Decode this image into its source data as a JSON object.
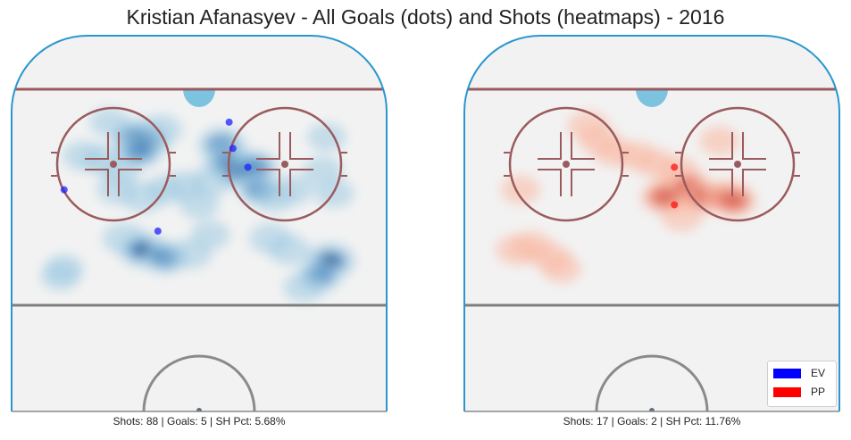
{
  "title": "Kristian Afanasyev - All Goals (dots) and Shots (heatmaps) - 2016",
  "chart_data": {
    "type": "heatmap",
    "legend": {
      "placement": "bottom-right",
      "entries": [
        {
          "label": "EV",
          "color": "#0000ff"
        },
        {
          "label": "PP",
          "color": "#ff0000"
        }
      ]
    },
    "panels": [
      {
        "strength": "EV",
        "caption": "Shots: 88 | Goals: 5 | SH Pct: 5.68%",
        "colors": {
          "dark": "#08306b",
          "mid": "#2f75b6",
          "light": "#9ecae1",
          "goal": "#2020ff"
        },
        "shot_density": [
          {
            "x": 0.33,
            "y": 0.27,
            "w": 2.2
          },
          {
            "x": 0.36,
            "y": 0.28,
            "w": 1.6
          },
          {
            "x": 0.34,
            "y": 0.31,
            "w": 0.9
          },
          {
            "x": 0.24,
            "y": 0.33,
            "w": 0.5
          },
          {
            "x": 0.19,
            "y": 0.32,
            "w": 0.4
          },
          {
            "x": 0.29,
            "y": 0.36,
            "w": 0.35
          },
          {
            "x": 0.28,
            "y": 0.41,
            "w": 0.35
          },
          {
            "x": 0.35,
            "y": 0.43,
            "w": 0.6
          },
          {
            "x": 0.41,
            "y": 0.41,
            "w": 0.35
          },
          {
            "x": 0.46,
            "y": 0.4,
            "w": 0.45
          },
          {
            "x": 0.53,
            "y": 0.39,
            "w": 0.55
          },
          {
            "x": 0.56,
            "y": 0.29,
            "w": 1.4
          },
          {
            "x": 0.58,
            "y": 0.34,
            "w": 2.3
          },
          {
            "x": 0.61,
            "y": 0.36,
            "w": 1.7
          },
          {
            "x": 0.65,
            "y": 0.35,
            "w": 1.1
          },
          {
            "x": 0.66,
            "y": 0.41,
            "w": 0.8
          },
          {
            "x": 0.7,
            "y": 0.43,
            "w": 0.45
          },
          {
            "x": 0.75,
            "y": 0.41,
            "w": 0.45
          },
          {
            "x": 0.83,
            "y": 0.36,
            "w": 0.35
          },
          {
            "x": 0.84,
            "y": 0.27,
            "w": 0.25
          },
          {
            "x": 0.86,
            "y": 0.42,
            "w": 0.3
          },
          {
            "x": 0.3,
            "y": 0.54,
            "w": 0.7
          },
          {
            "x": 0.35,
            "y": 0.57,
            "w": 1.6
          },
          {
            "x": 0.41,
            "y": 0.59,
            "w": 1.2
          },
          {
            "x": 0.48,
            "y": 0.58,
            "w": 0.45
          },
          {
            "x": 0.53,
            "y": 0.53,
            "w": 0.3
          },
          {
            "x": 0.69,
            "y": 0.54,
            "w": 0.55
          },
          {
            "x": 0.74,
            "y": 0.57,
            "w": 0.5
          },
          {
            "x": 0.85,
            "y": 0.6,
            "w": 1.9
          },
          {
            "x": 0.82,
            "y": 0.64,
            "w": 0.9
          },
          {
            "x": 0.78,
            "y": 0.67,
            "w": 0.5
          },
          {
            "x": 0.13,
            "y": 0.64,
            "w": 0.3
          },
          {
            "x": 0.14,
            "y": 0.62,
            "w": 0.25
          },
          {
            "x": 0.26,
            "y": 0.23,
            "w": 0.3
          },
          {
            "x": 0.4,
            "y": 0.25,
            "w": 0.5
          },
          {
            "x": 0.5,
            "y": 0.45,
            "w": 0.3
          }
        ],
        "goals": [
          {
            "x": 0.58,
            "y": 0.23
          },
          {
            "x": 0.59,
            "y": 0.3
          },
          {
            "x": 0.63,
            "y": 0.35
          },
          {
            "x": 0.14,
            "y": 0.41
          },
          {
            "x": 0.39,
            "y": 0.52
          }
        ]
      },
      {
        "strength": "PP",
        "caption": "Shots: 17 | Goals: 2 | SH Pct: 11.76%",
        "colors": {
          "dark": "#67000d",
          "mid": "#d0463a",
          "light": "#f9b7a0",
          "goal": "#ff1010"
        },
        "shot_density": [
          {
            "x": 0.33,
            "y": 0.24,
            "w": 0.5
          },
          {
            "x": 0.36,
            "y": 0.28,
            "w": 0.45
          },
          {
            "x": 0.4,
            "y": 0.31,
            "w": 0.4
          },
          {
            "x": 0.46,
            "y": 0.32,
            "w": 0.35
          },
          {
            "x": 0.51,
            "y": 0.34,
            "w": 0.4
          },
          {
            "x": 0.57,
            "y": 0.36,
            "w": 0.45
          },
          {
            "x": 0.56,
            "y": 0.42,
            "w": 1.5
          },
          {
            "x": 0.53,
            "y": 0.43,
            "w": 1.0
          },
          {
            "x": 0.6,
            "y": 0.4,
            "w": 0.8
          },
          {
            "x": 0.64,
            "y": 0.43,
            "w": 0.9
          },
          {
            "x": 0.7,
            "y": 0.43,
            "w": 1.3
          },
          {
            "x": 0.72,
            "y": 0.44,
            "w": 0.9
          },
          {
            "x": 0.58,
            "y": 0.48,
            "w": 0.55
          },
          {
            "x": 0.68,
            "y": 0.28,
            "w": 0.35
          },
          {
            "x": 0.14,
            "y": 0.57,
            "w": 0.55
          },
          {
            "x": 0.18,
            "y": 0.56,
            "w": 0.45
          },
          {
            "x": 0.23,
            "y": 0.59,
            "w": 0.4
          },
          {
            "x": 0.26,
            "y": 0.62,
            "w": 0.3
          },
          {
            "x": 0.15,
            "y": 0.41,
            "w": 0.3
          }
        ],
        "goals": [
          {
            "x": 0.56,
            "y": 0.35
          },
          {
            "x": 0.56,
            "y": 0.45
          }
        ]
      }
    ]
  }
}
